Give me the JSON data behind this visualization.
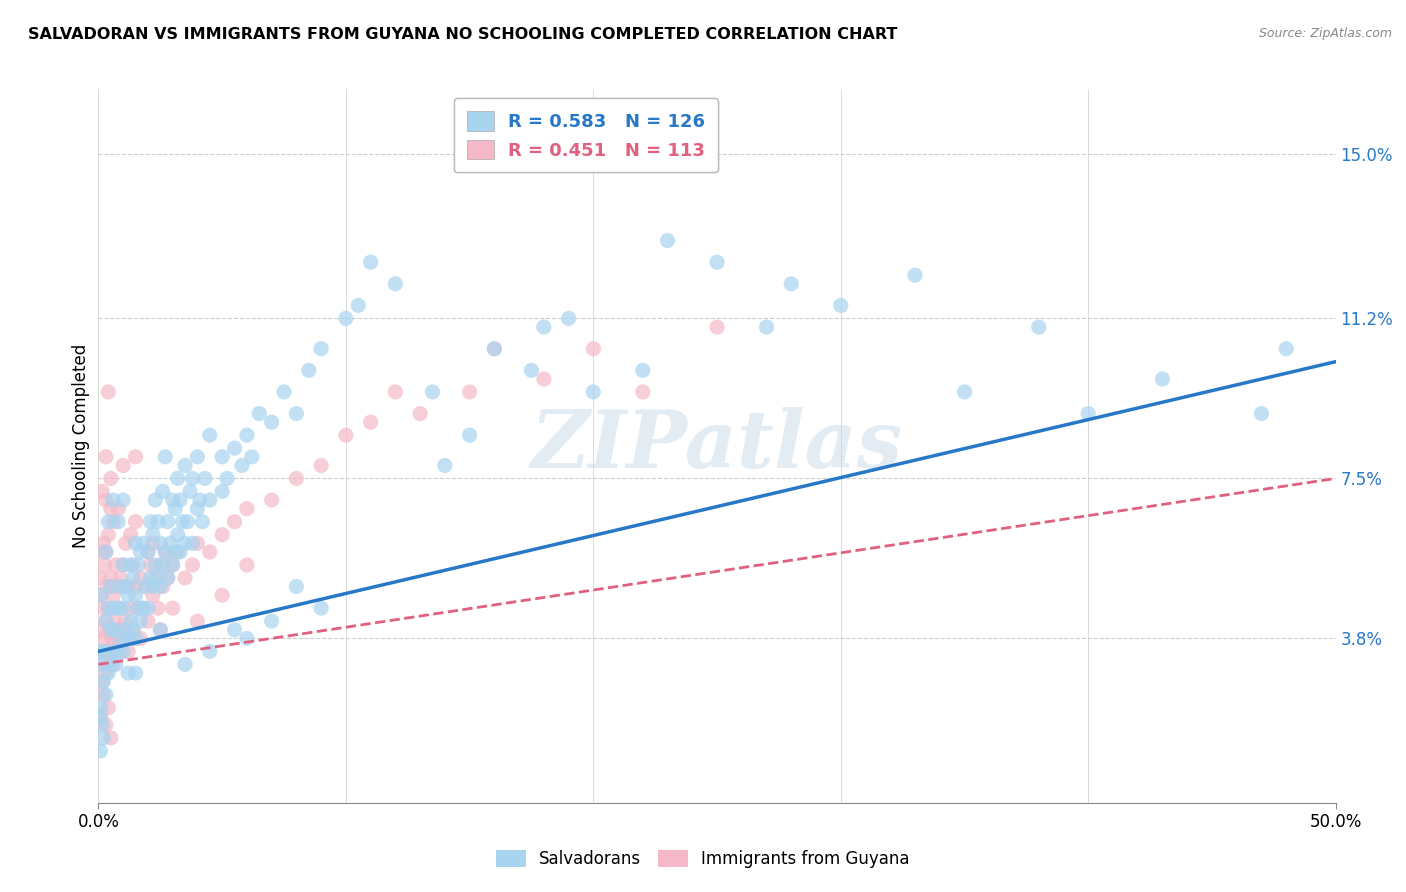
{
  "title": "SALVADORAN VS IMMIGRANTS FROM GUYANA NO SCHOOLING COMPLETED CORRELATION CHART",
  "source": "Source: ZipAtlas.com",
  "ylabel": "No Schooling Completed",
  "ytick_labels": [
    "3.8%",
    "7.5%",
    "11.2%",
    "15.0%"
  ],
  "ytick_values": [
    3.8,
    7.5,
    11.2,
    15.0
  ],
  "xlim": [
    0.0,
    50.0
  ],
  "ylim": [
    0.0,
    16.5
  ],
  "salvadoran_color": "#a8d4f0",
  "guyana_color": "#f5b8c8",
  "salvadoran_line_color": "#2878c8",
  "guyana_line_color": "#e06080",
  "watermark": "ZIPatlas",
  "background_color": "#ffffff",
  "grid_color": "#cccccc",
  "R_salvadoran": 0.583,
  "N_salvadoran": 126,
  "R_guyana": 0.451,
  "N_guyana": 113,
  "sal_line_x0": 0.0,
  "sal_line_y0": 3.5,
  "sal_line_x1": 50.0,
  "sal_line_y1": 10.2,
  "guy_line_x0": 0.0,
  "guy_line_y0": 3.2,
  "guy_line_x1": 50.0,
  "guy_line_y1": 7.5,
  "salvadoran_scatter": [
    [
      0.15,
      3.2
    ],
    [
      0.2,
      2.8
    ],
    [
      0.25,
      3.5
    ],
    [
      0.3,
      2.5
    ],
    [
      0.3,
      4.2
    ],
    [
      0.4,
      3.0
    ],
    [
      0.4,
      4.5
    ],
    [
      0.5,
      3.2
    ],
    [
      0.5,
      4.0
    ],
    [
      0.5,
      5.0
    ],
    [
      0.6,
      3.5
    ],
    [
      0.6,
      4.5
    ],
    [
      0.7,
      3.2
    ],
    [
      0.7,
      4.0
    ],
    [
      0.8,
      3.5
    ],
    [
      0.8,
      4.5
    ],
    [
      0.9,
      3.8
    ],
    [
      0.9,
      5.0
    ],
    [
      1.0,
      3.5
    ],
    [
      1.0,
      4.5
    ],
    [
      1.0,
      5.5
    ],
    [
      1.1,
      4.0
    ],
    [
      1.1,
      5.0
    ],
    [
      1.2,
      3.8
    ],
    [
      1.2,
      4.8
    ],
    [
      1.3,
      4.2
    ],
    [
      1.3,
      5.5
    ],
    [
      1.4,
      4.0
    ],
    [
      1.4,
      5.2
    ],
    [
      1.5,
      3.8
    ],
    [
      1.5,
      4.8
    ],
    [
      1.5,
      6.0
    ],
    [
      1.6,
      4.5
    ],
    [
      1.6,
      5.5
    ],
    [
      1.7,
      4.2
    ],
    [
      1.7,
      5.8
    ],
    [
      1.8,
      4.5
    ],
    [
      1.8,
      6.0
    ],
    [
      1.9,
      5.0
    ],
    [
      2.0,
      4.5
    ],
    [
      2.0,
      5.8
    ],
    [
      2.1,
      5.2
    ],
    [
      2.1,
      6.5
    ],
    [
      2.2,
      5.0
    ],
    [
      2.2,
      6.2
    ],
    [
      2.3,
      5.5
    ],
    [
      2.3,
      7.0
    ],
    [
      2.4,
      5.2
    ],
    [
      2.4,
      6.5
    ],
    [
      2.5,
      5.0
    ],
    [
      2.5,
      6.0
    ],
    [
      2.6,
      5.5
    ],
    [
      2.6,
      7.2
    ],
    [
      2.7,
      5.8
    ],
    [
      2.7,
      8.0
    ],
    [
      2.8,
      5.2
    ],
    [
      2.8,
      6.5
    ],
    [
      2.9,
      6.0
    ],
    [
      3.0,
      5.5
    ],
    [
      3.0,
      7.0
    ],
    [
      3.1,
      5.8
    ],
    [
      3.1,
      6.8
    ],
    [
      3.2,
      6.2
    ],
    [
      3.2,
      7.5
    ],
    [
      3.3,
      5.8
    ],
    [
      3.3,
      7.0
    ],
    [
      3.4,
      6.5
    ],
    [
      3.5,
      6.0
    ],
    [
      3.5,
      7.8
    ],
    [
      3.6,
      6.5
    ],
    [
      3.7,
      7.2
    ],
    [
      3.8,
      6.0
    ],
    [
      3.8,
      7.5
    ],
    [
      4.0,
      6.8
    ],
    [
      4.0,
      8.0
    ],
    [
      4.1,
      7.0
    ],
    [
      4.2,
      6.5
    ],
    [
      4.3,
      7.5
    ],
    [
      4.5,
      7.0
    ],
    [
      4.5,
      8.5
    ],
    [
      5.0,
      7.2
    ],
    [
      5.0,
      8.0
    ],
    [
      5.2,
      7.5
    ],
    [
      5.5,
      8.2
    ],
    [
      5.8,
      7.8
    ],
    [
      6.0,
      8.5
    ],
    [
      6.2,
      8.0
    ],
    [
      6.5,
      9.0
    ],
    [
      7.0,
      8.8
    ],
    [
      7.5,
      9.5
    ],
    [
      8.0,
      9.0
    ],
    [
      8.5,
      10.0
    ],
    [
      9.0,
      10.5
    ],
    [
      10.0,
      11.2
    ],
    [
      10.5,
      11.5
    ],
    [
      11.0,
      12.5
    ],
    [
      12.0,
      12.0
    ],
    [
      14.0,
      7.8
    ],
    [
      15.0,
      8.5
    ],
    [
      16.0,
      10.5
    ],
    [
      18.0,
      11.0
    ],
    [
      20.0,
      9.5
    ],
    [
      22.0,
      10.0
    ],
    [
      23.0,
      13.0
    ],
    [
      25.0,
      12.5
    ],
    [
      27.0,
      11.0
    ],
    [
      28.0,
      12.0
    ],
    [
      30.0,
      11.5
    ],
    [
      33.0,
      12.2
    ],
    [
      35.0,
      9.5
    ],
    [
      38.0,
      11.0
    ],
    [
      40.0,
      9.0
    ],
    [
      43.0,
      9.8
    ],
    [
      47.0,
      9.0
    ],
    [
      48.0,
      10.5
    ],
    [
      0.1,
      2.2
    ],
    [
      0.15,
      1.8
    ],
    [
      0.2,
      1.5
    ],
    [
      0.1,
      4.8
    ],
    [
      0.05,
      3.5
    ],
    [
      1.2,
      3.0
    ],
    [
      1.5,
      3.0
    ],
    [
      2.5,
      4.0
    ],
    [
      3.5,
      3.2
    ],
    [
      4.5,
      3.5
    ],
    [
      0.3,
      5.8
    ],
    [
      0.4,
      6.5
    ],
    [
      0.6,
      7.0
    ],
    [
      0.8,
      6.5
    ],
    [
      1.0,
      7.0
    ],
    [
      5.5,
      4.0
    ],
    [
      6.0,
      3.8
    ],
    [
      7.0,
      4.2
    ],
    [
      8.0,
      5.0
    ],
    [
      9.0,
      4.5
    ],
    [
      13.5,
      9.5
    ],
    [
      17.5,
      10.0
    ],
    [
      19.0,
      11.2
    ],
    [
      0.05,
      2.0
    ],
    [
      0.08,
      1.2
    ]
  ],
  "guyana_scatter": [
    [
      0.05,
      5.2
    ],
    [
      0.1,
      3.5
    ],
    [
      0.1,
      4.8
    ],
    [
      0.15,
      2.8
    ],
    [
      0.15,
      4.0
    ],
    [
      0.15,
      5.8
    ],
    [
      0.2,
      3.2
    ],
    [
      0.2,
      4.5
    ],
    [
      0.2,
      6.0
    ],
    [
      0.25,
      3.8
    ],
    [
      0.25,
      5.5
    ],
    [
      0.3,
      3.0
    ],
    [
      0.3,
      4.2
    ],
    [
      0.3,
      5.8
    ],
    [
      0.3,
      7.0
    ],
    [
      0.35,
      3.5
    ],
    [
      0.35,
      5.0
    ],
    [
      0.4,
      3.2
    ],
    [
      0.4,
      4.5
    ],
    [
      0.4,
      6.2
    ],
    [
      0.45,
      4.0
    ],
    [
      0.5,
      3.5
    ],
    [
      0.5,
      5.2
    ],
    [
      0.5,
      6.8
    ],
    [
      0.55,
      3.8
    ],
    [
      0.55,
      5.0
    ],
    [
      0.6,
      3.2
    ],
    [
      0.6,
      4.8
    ],
    [
      0.6,
      6.5
    ],
    [
      0.65,
      4.2
    ],
    [
      0.7,
      3.5
    ],
    [
      0.7,
      5.5
    ],
    [
      0.75,
      4.0
    ],
    [
      0.8,
      3.8
    ],
    [
      0.8,
      5.0
    ],
    [
      0.8,
      6.8
    ],
    [
      0.85,
      4.5
    ],
    [
      0.9,
      3.5
    ],
    [
      0.9,
      5.2
    ],
    [
      0.95,
      4.0
    ],
    [
      1.0,
      3.8
    ],
    [
      1.0,
      5.5
    ],
    [
      1.1,
      4.2
    ],
    [
      1.1,
      6.0
    ],
    [
      1.2,
      3.5
    ],
    [
      1.2,
      5.0
    ],
    [
      1.3,
      4.5
    ],
    [
      1.3,
      6.2
    ],
    [
      1.4,
      4.0
    ],
    [
      1.4,
      5.5
    ],
    [
      1.5,
      3.8
    ],
    [
      1.5,
      5.0
    ],
    [
      1.5,
      6.5
    ],
    [
      1.6,
      4.5
    ],
    [
      1.7,
      3.8
    ],
    [
      1.7,
      5.2
    ],
    [
      1.8,
      4.5
    ],
    [
      1.9,
      5.0
    ],
    [
      2.0,
      4.2
    ],
    [
      2.0,
      5.8
    ],
    [
      2.1,
      5.5
    ],
    [
      2.2,
      4.8
    ],
    [
      2.2,
      6.0
    ],
    [
      2.3,
      5.2
    ],
    [
      2.4,
      4.5
    ],
    [
      2.5,
      5.5
    ],
    [
      2.6,
      5.0
    ],
    [
      2.7,
      5.8
    ],
    [
      2.8,
      5.2
    ],
    [
      3.0,
      5.5
    ],
    [
      3.2,
      5.8
    ],
    [
      3.5,
      5.2
    ],
    [
      3.8,
      5.5
    ],
    [
      4.0,
      6.0
    ],
    [
      4.5,
      5.8
    ],
    [
      5.0,
      6.2
    ],
    [
      5.5,
      6.5
    ],
    [
      6.0,
      6.8
    ],
    [
      7.0,
      7.0
    ],
    [
      8.0,
      7.5
    ],
    [
      9.0,
      7.8
    ],
    [
      10.0,
      8.5
    ],
    [
      11.0,
      8.8
    ],
    [
      12.0,
      9.5
    ],
    [
      13.0,
      9.0
    ],
    [
      15.0,
      9.5
    ],
    [
      16.0,
      10.5
    ],
    [
      18.0,
      9.8
    ],
    [
      20.0,
      10.5
    ],
    [
      22.0,
      9.5
    ],
    [
      25.0,
      11.0
    ],
    [
      0.15,
      7.2
    ],
    [
      0.3,
      8.0
    ],
    [
      0.5,
      7.5
    ],
    [
      1.5,
      8.0
    ],
    [
      0.2,
      2.5
    ],
    [
      0.1,
      2.0
    ],
    [
      0.3,
      1.8
    ],
    [
      0.4,
      2.2
    ],
    [
      0.5,
      1.5
    ],
    [
      2.5,
      4.0
    ],
    [
      3.0,
      4.5
    ],
    [
      4.0,
      4.2
    ],
    [
      5.0,
      4.8
    ],
    [
      6.0,
      5.5
    ],
    [
      0.4,
      9.5
    ],
    [
      1.0,
      7.8
    ]
  ]
}
